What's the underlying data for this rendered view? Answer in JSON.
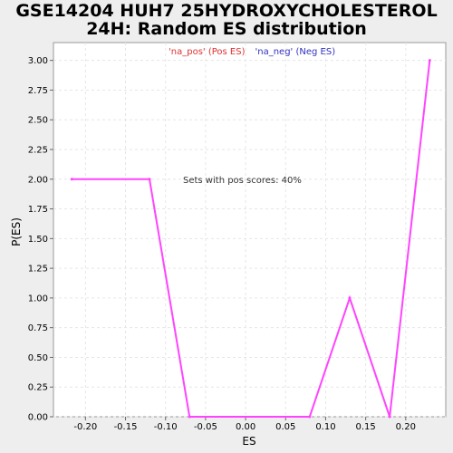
{
  "title_lines": [
    "GSE14204 HUH7 25HYDROXYCHOLESTEROL",
    "24H: Random ES distribution"
  ],
  "chart_data": {
    "type": "line",
    "title": "GSE14204 HUH7 25HYDROXYCHOLESTEROL 24H: Random ES distribution",
    "xlabel": "ES",
    "ylabel": "P(ES)",
    "xlim": [
      -0.24,
      0.25
    ],
    "ylim": [
      0,
      3.15
    ],
    "x_ticks": [
      -0.2,
      -0.15,
      -0.1,
      -0.05,
      0.0,
      0.05,
      0.1,
      0.15,
      0.2
    ],
    "x_tick_labels": [
      "-0.20",
      "-0.15",
      "-0.10",
      "-0.05",
      "0.00",
      "0.05",
      "0.10",
      "0.15",
      "0.20"
    ],
    "y_ticks": [
      0,
      0.25,
      0.5,
      0.75,
      1.0,
      1.25,
      1.5,
      1.75,
      2.0,
      2.25,
      2.5,
      2.75,
      3.0
    ],
    "y_tick_labels": [
      "0.00",
      "0.25",
      "0.50",
      "0.75",
      "1.00",
      "1.25",
      "1.50",
      "1.75",
      "2.00",
      "2.25",
      "2.50",
      "2.75",
      "3.00"
    ],
    "grid": true,
    "legend": [
      {
        "label": "'na_pos' (Pos ES)",
        "color": "#e03030"
      },
      {
        "label": "'na_neg' (Neg ES)",
        "color": "#3030c0"
      }
    ],
    "legend_position": "top-center",
    "annotation": "Sets with pos scores: 40%",
    "series": [
      {
        "color": "#ff44ff",
        "x": [
          -0.217,
          -0.12,
          -0.07,
          0.08,
          0.13,
          0.18,
          0.23
        ],
        "y": [
          2.0,
          2.0,
          0.0,
          0.0,
          1.0,
          0.0,
          3.0
        ]
      }
    ]
  }
}
